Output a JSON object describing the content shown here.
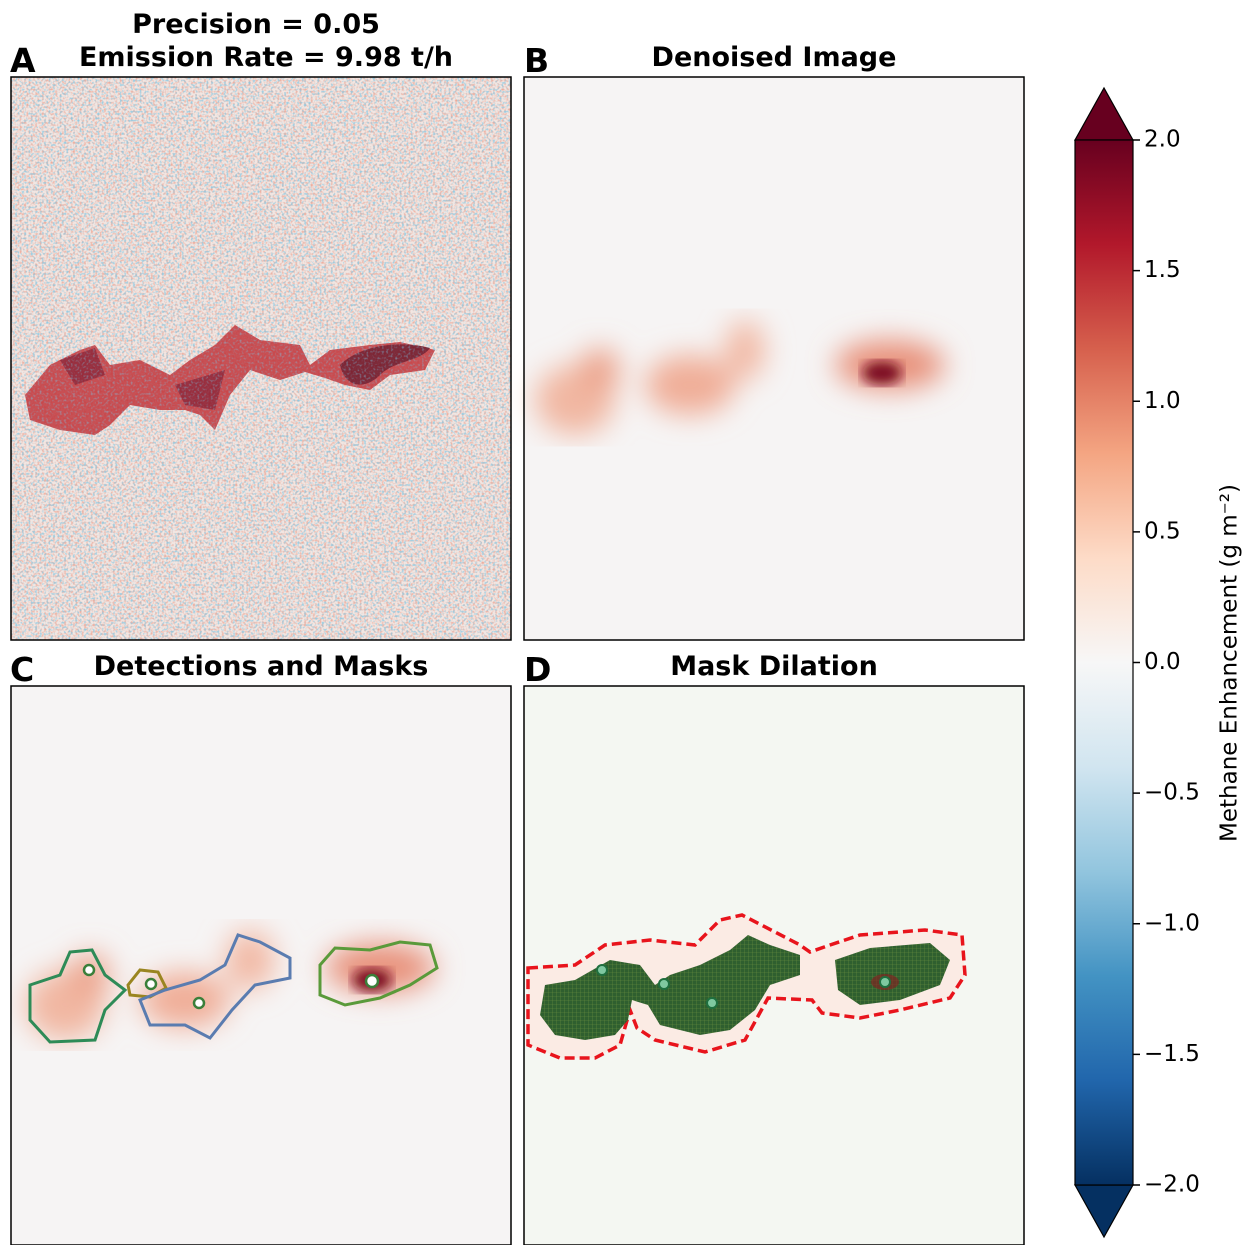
{
  "figure": {
    "panels": [
      {
        "letter": "A",
        "title_lines": [
          "Precision = 0.05",
          "Emission Rate = 9.98 t/h"
        ]
      },
      {
        "letter": "B",
        "title_lines": [
          "Denoised Image"
        ]
      },
      {
        "letter": "C",
        "title_lines": [
          "Detections and Masks"
        ]
      },
      {
        "letter": "D",
        "title_lines": [
          "Mask Dilation"
        ]
      }
    ],
    "colorbar": {
      "label": "Methane Enhancement (g m⁻²)",
      "lim": [
        -2,
        2
      ],
      "colormap": [
        "#053061",
        "#2166ac",
        "#4393c3",
        "#92c5de",
        "#d1e5f0",
        "#f7f7f7",
        "#fddbc7",
        "#f4a582",
        "#d6604d",
        "#b2182b",
        "#67001f"
      ],
      "ticks": [
        {
          "value": 2,
          "label": "2.0"
        },
        {
          "value": 1.5,
          "label": "1.5"
        },
        {
          "value": 1,
          "label": "1.0"
        },
        {
          "value": 0.5,
          "label": "0.5"
        },
        {
          "value": 0,
          "label": "0.0"
        },
        {
          "value": -0.5,
          "label": "−0.5"
        },
        {
          "value": -1,
          "label": "−1.0"
        },
        {
          "value": -1.5,
          "label": "−1.5"
        },
        {
          "value": -2,
          "label": "−2.0"
        }
      ]
    }
  }
}
